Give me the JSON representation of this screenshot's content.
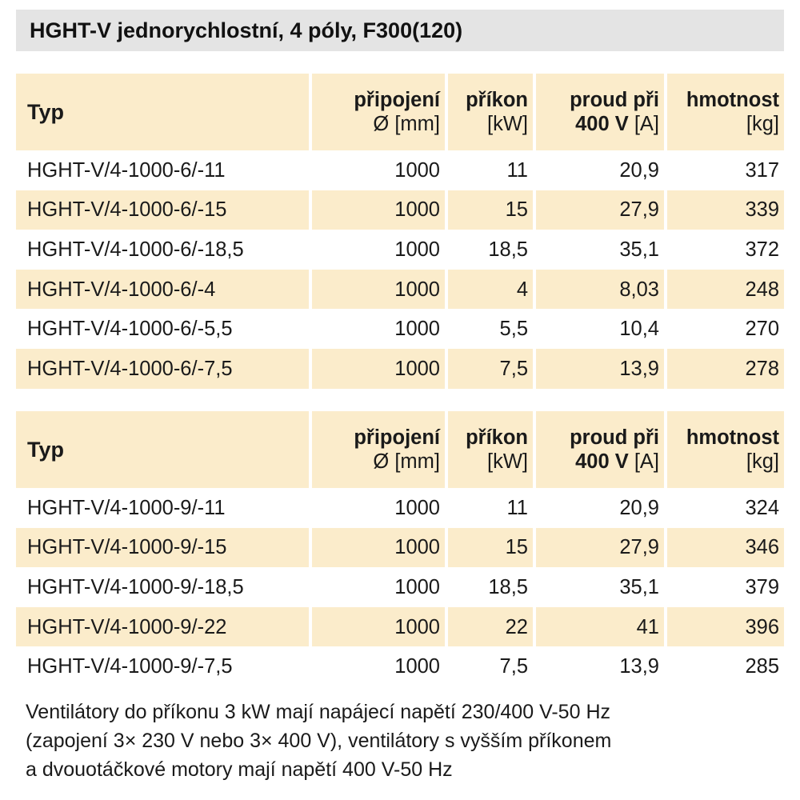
{
  "title": "HGHT-V jednorychlostní, 4 póly, F300(120)",
  "tables": [
    {
      "header": {
        "typ": "Typ",
        "pripojeni_1": "připojení",
        "pripojeni_2": "Ø [mm]",
        "prikon_1": "příkon",
        "prikon_2": "[kW]",
        "proud_1": "proud při",
        "proud_2a": "400 V",
        "proud_2b": " [A]",
        "hmotnost_1": "hmotnost",
        "hmotnost_2": "[kg]"
      },
      "rows": [
        {
          "typ": "HGHT-V/4-1000-6/-11",
          "pripojeni": "1000",
          "prikon": "11",
          "proud": "20,9",
          "hmotnost": "317"
        },
        {
          "typ": "HGHT-V/4-1000-6/-15",
          "pripojeni": "1000",
          "prikon": "15",
          "proud": "27,9",
          "hmotnost": "339"
        },
        {
          "typ": "HGHT-V/4-1000-6/-18,5",
          "pripojeni": "1000",
          "prikon": "18,5",
          "proud": "35,1",
          "hmotnost": "372"
        },
        {
          "typ": "HGHT-V/4-1000-6/-4",
          "pripojeni": "1000",
          "prikon": "4",
          "proud": "8,03",
          "hmotnost": "248"
        },
        {
          "typ": "HGHT-V/4-1000-6/-5,5",
          "pripojeni": "1000",
          "prikon": "5,5",
          "proud": "10,4",
          "hmotnost": "270"
        },
        {
          "typ": "HGHT-V/4-1000-6/-7,5",
          "pripojeni": "1000",
          "prikon": "7,5",
          "proud": "13,9",
          "hmotnost": "278"
        }
      ]
    },
    {
      "header": {
        "typ": "Typ",
        "pripojeni_1": "připojení",
        "pripojeni_2": "Ø [mm]",
        "prikon_1": "příkon",
        "prikon_2": "[kW]",
        "proud_1": "proud při",
        "proud_2a": "400 V",
        "proud_2b": " [A]",
        "hmotnost_1": "hmotnost",
        "hmotnost_2": "[kg]"
      },
      "rows": [
        {
          "typ": "HGHT-V/4-1000-9/-11",
          "pripojeni": "1000",
          "prikon": "11",
          "proud": "20,9",
          "hmotnost": "324"
        },
        {
          "typ": "HGHT-V/4-1000-9/-15",
          "pripojeni": "1000",
          "prikon": "15",
          "proud": "27,9",
          "hmotnost": "346"
        },
        {
          "typ": "HGHT-V/4-1000-9/-18,5",
          "pripojeni": "1000",
          "prikon": "18,5",
          "proud": "35,1",
          "hmotnost": "379"
        },
        {
          "typ": "HGHT-V/4-1000-9/-22",
          "pripojeni": "1000",
          "prikon": "22",
          "proud": "41",
          "hmotnost": "396"
        },
        {
          "typ": "HGHT-V/4-1000-9/-7,5",
          "pripojeni": "1000",
          "prikon": "7,5",
          "proud": "13,9",
          "hmotnost": "285"
        }
      ]
    }
  ],
  "note": {
    "line1": "Ventilátory do příkonu 3 kW mají napájecí napětí 230/400 V-50 Hz",
    "line2": "(zapojení 3× 230 V nebo 3× 400 V), ventilátory s vyšším příkonem",
    "line3": "a dvouotáčkové motory mají napětí 400 V-50 Hz"
  },
  "colors": {
    "header_bg": "#fbeccb",
    "title_bg": "#e4e4e4"
  }
}
